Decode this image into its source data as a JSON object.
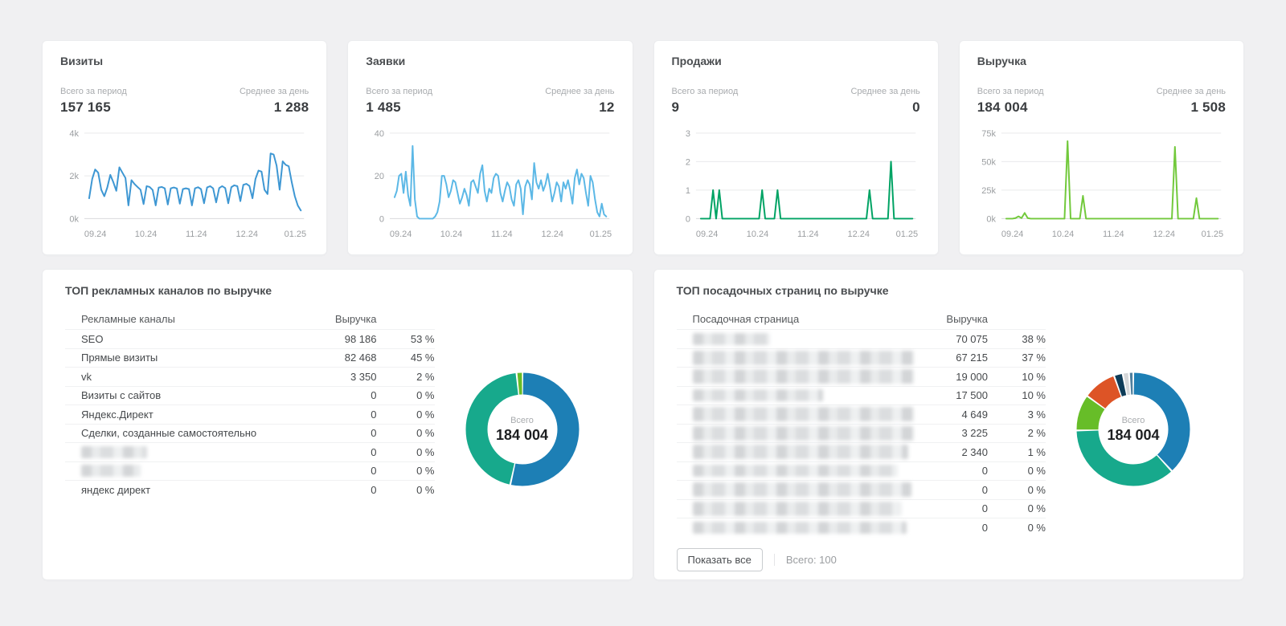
{
  "donut_center_label": "Всего",
  "donut_center_value": "184 004",
  "metric_cards": [
    {
      "name": "visits",
      "title": "Визиты",
      "total_label": "Всего за период",
      "total_value": "157 165",
      "avg_label": "Среднее за день",
      "avg_value": "1 288",
      "line_color": "#3e97d3",
      "y_ticks": [
        "0k",
        "2k",
        "4k"
      ],
      "y_max": 4000,
      "x_ticks": [
        "09.24",
        "10.24",
        "11.24",
        "12.24",
        "01.25"
      ],
      "values": [
        950,
        1850,
        2300,
        2150,
        1350,
        1050,
        1450,
        2050,
        1700,
        1300,
        2400,
        2150,
        1900,
        620,
        1800,
        1620,
        1480,
        1350,
        680,
        1520,
        1480,
        1340,
        620,
        1450,
        1480,
        1420,
        660,
        1420,
        1460,
        1410,
        700,
        1380,
        1420,
        1380,
        620,
        1420,
        1470,
        1380,
        720,
        1460,
        1520,
        1420,
        760,
        1430,
        1520,
        1430,
        720,
        1470,
        1560,
        1520,
        820,
        1580,
        1630,
        1530,
        950,
        1850,
        2250,
        2200,
        1350,
        1150,
        3050,
        3000,
        2480,
        1350,
        2680,
        2520,
        2450,
        1700,
        1050,
        620,
        380
      ]
    },
    {
      "name": "leads",
      "title": "Заявки",
      "total_label": "Всего за период",
      "total_value": "1 485",
      "avg_label": "Среднее за день",
      "avg_value": "12",
      "line_color": "#5cb8e6",
      "y_ticks": [
        "0",
        "20",
        "40"
      ],
      "y_max": 40,
      "x_ticks": [
        "09.24",
        "10.24",
        "11.24",
        "12.24",
        "01.25"
      ],
      "values": [
        10,
        13,
        20,
        21,
        12,
        22,
        11,
        6,
        34,
        9,
        1,
        0,
        0,
        0,
        0,
        0,
        0,
        0,
        1,
        3,
        8,
        20,
        20,
        16,
        10,
        13,
        18,
        17,
        12,
        7,
        10,
        14,
        11,
        6,
        17,
        18,
        15,
        12,
        21,
        25,
        13,
        8,
        14,
        12,
        19,
        21,
        20,
        12,
        8,
        13,
        17,
        15,
        9,
        6,
        16,
        18,
        14,
        2,
        15,
        18,
        16,
        9,
        26,
        17,
        14,
        18,
        13,
        16,
        21,
        15,
        8,
        12,
        17,
        15,
        8,
        17,
        14,
        18,
        13,
        7,
        19,
        23,
        16,
        21,
        19,
        12,
        6,
        20,
        17,
        9,
        3,
        1,
        7,
        2,
        1
      ]
    },
    {
      "name": "sales",
      "title": "Продажи",
      "total_label": "Всего за период",
      "total_value": "9",
      "avg_label": "Среднее за день",
      "avg_value": "0",
      "line_color": "#00a364",
      "y_ticks": [
        "0",
        "1",
        "2",
        "3"
      ],
      "y_max": 3,
      "x_ticks": [
        "09.24",
        "10.24",
        "11.24",
        "12.24",
        "01.25"
      ],
      "values": [
        0,
        0,
        0,
        0,
        1,
        0,
        1,
        0,
        0,
        0,
        0,
        0,
        0,
        0,
        0,
        0,
        0,
        0,
        0,
        0,
        1,
        0,
        0,
        0,
        0,
        1,
        0,
        0,
        0,
        0,
        0,
        0,
        0,
        0,
        0,
        0,
        0,
        0,
        0,
        0,
        0,
        0,
        0,
        0,
        0,
        0,
        0,
        0,
        0,
        0,
        0,
        0,
        0,
        0,
        0,
        1,
        0,
        0,
        0,
        0,
        0,
        0,
        2,
        0,
        0,
        0,
        0,
        0,
        0,
        0
      ]
    },
    {
      "name": "revenue",
      "title": "Выручка",
      "total_label": "Всего за период",
      "total_value": "184 004",
      "avg_label": "Среднее за день",
      "avg_value": "1 508",
      "line_color": "#72c93c",
      "y_ticks": [
        "0k",
        "25k",
        "50k",
        "75k"
      ],
      "y_max": 75000,
      "x_ticks": [
        "09.24",
        "10.24",
        "11.24",
        "12.24",
        "01.25"
      ],
      "values": [
        0,
        0,
        0,
        500,
        2000,
        500,
        5000,
        500,
        0,
        0,
        0,
        0,
        0,
        0,
        0,
        0,
        0,
        0,
        0,
        0,
        68000,
        0,
        0,
        0,
        0,
        20000,
        0,
        0,
        0,
        0,
        0,
        0,
        0,
        0,
        0,
        0,
        0,
        0,
        0,
        0,
        0,
        0,
        0,
        0,
        0,
        0,
        0,
        0,
        0,
        0,
        0,
        0,
        0,
        0,
        0,
        63000,
        0,
        0,
        0,
        0,
        0,
        0,
        18000,
        0,
        0,
        0,
        0,
        0,
        0,
        0
      ]
    }
  ],
  "panels": [
    {
      "name": "top-ad-channels",
      "title": "ТОП рекламных каналов по выручке",
      "col_label": "Рекламные каналы",
      "value_label": "Выручка",
      "rows": [
        {
          "dot": "#1d7fb5",
          "label": "SEO",
          "blurred": false,
          "value": "98 186",
          "pct": "53 %"
        },
        {
          "dot": "#17a98c",
          "label": "Прямые визиты",
          "blurred": false,
          "value": "82 468",
          "pct": "45 %"
        },
        {
          "dot": "#67bd28",
          "label": "vk",
          "blurred": false,
          "value": "3 350",
          "pct": "2 %"
        },
        {
          "dot": "#dd5426",
          "label": "Визиты с сайтов",
          "blurred": false,
          "value": "0",
          "pct": "0 %"
        },
        {
          "dot": "#0e3c58",
          "label": "Яндекс.Директ",
          "blurred": false,
          "value": "0",
          "pct": "0 %"
        },
        {
          "dot": "#d5d7d9",
          "label": "Сделки, созданные самостоятельно",
          "blurred": false,
          "value": "0",
          "pct": "0 %"
        },
        {
          "dot": "#a32ba3",
          "label": "",
          "blurred": true,
          "blur_width": 82,
          "value": "0",
          "pct": "0 %"
        },
        {
          "dot": "#5e3a33",
          "label": "",
          "blurred": true,
          "blur_width": 74,
          "value": "0",
          "pct": "0 %"
        },
        {
          "dot": "#cfe87e",
          "label": "яндекс директ",
          "blurred": false,
          "value": "0",
          "pct": "0 %"
        }
      ],
      "donut_slices": [
        {
          "color": "#1d7fb5",
          "pct": 53.4
        },
        {
          "color": "#17a98c",
          "pct": 44.8
        },
        {
          "color": "#67bd28",
          "pct": 1.8
        }
      ],
      "footer": null
    },
    {
      "name": "top-landing-pages",
      "title": "ТОП посадочных страниц по выручке",
      "col_label": "Посадочная страница",
      "value_label": "Выручка",
      "rows": [
        {
          "dot": "#1d7fb5",
          "label": "",
          "blurred": true,
          "blur_width": 96,
          "value": "70 075",
          "pct": "38 %"
        },
        {
          "dot": "#17a98c",
          "label": "",
          "blurred": true,
          "blur_width": 278,
          "tall": true,
          "value": "67 215",
          "pct": "37 %"
        },
        {
          "dot": "#67bd28",
          "label": "",
          "blurred": true,
          "blur_width": 282,
          "tall": true,
          "value": "19 000",
          "pct": "10 %"
        },
        {
          "dot": "#dd5426",
          "label": "",
          "blurred": true,
          "blur_width": 162,
          "value": "17 500",
          "pct": "10 %"
        },
        {
          "dot": "#0e3c58",
          "label": "",
          "blurred": true,
          "blur_width": 276,
          "tall": true,
          "value": "4 649",
          "pct": "3 %"
        },
        {
          "dot": "#d5d7d9",
          "label": "",
          "blurred": true,
          "blur_width": 280,
          "tall": true,
          "value": "3 225",
          "pct": "2 %"
        },
        {
          "dot": null,
          "label": "",
          "blurred": true,
          "blur_width": 268,
          "tall": true,
          "value": "2 340",
          "pct": "1 %"
        },
        {
          "dot": null,
          "label": "",
          "blurred": true,
          "blur_width": 255,
          "value": "0",
          "pct": "0 %"
        },
        {
          "dot": null,
          "label": "",
          "blurred": true,
          "blur_width": 272,
          "tall": true,
          "value": "0",
          "pct": "0 %"
        },
        {
          "dot": null,
          "label": "",
          "blurred": true,
          "blur_width": 260,
          "tall": true,
          "value": "0",
          "pct": "0 %"
        },
        {
          "dot": null,
          "label": "",
          "blurred": true,
          "blur_width": 266,
          "value": "0",
          "pct": "0 %"
        }
      ],
      "donut_slices": [
        {
          "color": "#1d7fb5",
          "pct": 38.1
        },
        {
          "color": "#17a98c",
          "pct": 36.5
        },
        {
          "color": "#67bd28",
          "pct": 10.3
        },
        {
          "color": "#dd5426",
          "pct": 9.5
        },
        {
          "color": "#0e3c58",
          "pct": 2.5
        },
        {
          "color": "#d5d7d9",
          "pct": 1.75
        },
        {
          "color": "#4e7f9e",
          "pct": 1.27
        }
      ],
      "footer": {
        "button_label": "Показать все",
        "total_text": "Всего: 100"
      }
    }
  ]
}
